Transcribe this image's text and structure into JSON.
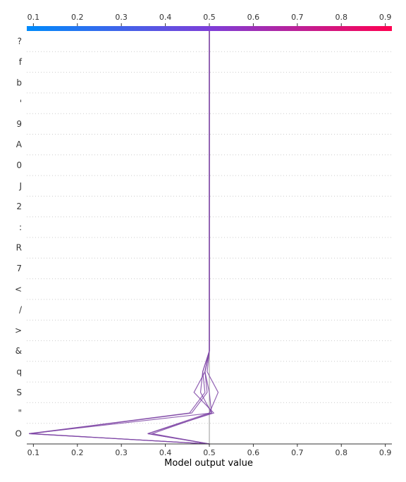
{
  "chart_data": {
    "type": "line",
    "title": "",
    "xlabel": "Model output value",
    "xlim": [
      0.085,
      0.915
    ],
    "xticks": [
      0.1,
      0.2,
      0.3,
      0.4,
      0.5,
      0.6,
      0.7,
      0.8,
      0.9
    ],
    "xtick_labels": [
      "0.1",
      "0.2",
      "0.3",
      "0.4",
      "0.5",
      "0.6",
      "0.7",
      "0.8",
      "0.9"
    ],
    "base_value": 0.5,
    "features_top_to_bottom": [
      "?",
      "f",
      "b",
      "'",
      "9",
      "A",
      "0",
      "J",
      "2",
      ":",
      "R",
      "7",
      "<",
      "/",
      ">",
      "&",
      "q",
      "S",
      "\"",
      "O"
    ],
    "grid": "dotted horizontal lines between features",
    "colorbar": {
      "position": "top",
      "colors": [
        "#008bfb",
        "#ff0051"
      ]
    },
    "series": [
      {
        "values": [
          0.5,
          0.5,
          0.5,
          0.5,
          0.5,
          0.5,
          0.5,
          0.5,
          0.5,
          0.5,
          0.5,
          0.5,
          0.5,
          0.5,
          0.5,
          0.5,
          0.485,
          0.49,
          0.455,
          0.09
        ]
      },
      {
        "values": [
          0.5,
          0.5,
          0.5,
          0.5,
          0.5,
          0.5,
          0.5,
          0.5,
          0.5,
          0.5,
          0.5,
          0.5,
          0.5,
          0.5,
          0.5,
          0.5,
          0.49,
          0.495,
          0.46,
          0.095
        ]
      },
      {
        "values": [
          0.5,
          0.5,
          0.5,
          0.5,
          0.5,
          0.5,
          0.5,
          0.5,
          0.5,
          0.5,
          0.5,
          0.5,
          0.5,
          0.5,
          0.5,
          0.5,
          0.49,
          0.5,
          0.505,
          0.09
        ]
      },
      {
        "values": [
          0.5,
          0.5,
          0.5,
          0.5,
          0.5,
          0.5,
          0.5,
          0.5,
          0.5,
          0.5,
          0.5,
          0.5,
          0.5,
          0.5,
          0.5,
          0.5,
          0.495,
          0.52,
          0.5,
          0.36
        ]
      },
      {
        "values": [
          0.5,
          0.5,
          0.5,
          0.5,
          0.5,
          0.5,
          0.5,
          0.5,
          0.5,
          0.5,
          0.5,
          0.5,
          0.5,
          0.5,
          0.5,
          0.5,
          0.49,
          0.465,
          0.51,
          0.36
        ]
      },
      {
        "values": [
          0.5,
          0.5,
          0.5,
          0.5,
          0.5,
          0.5,
          0.5,
          0.5,
          0.5,
          0.5,
          0.5,
          0.5,
          0.5,
          0.5,
          0.5,
          0.5,
          0.485,
          0.48,
          0.505,
          0.37
        ]
      }
    ]
  }
}
